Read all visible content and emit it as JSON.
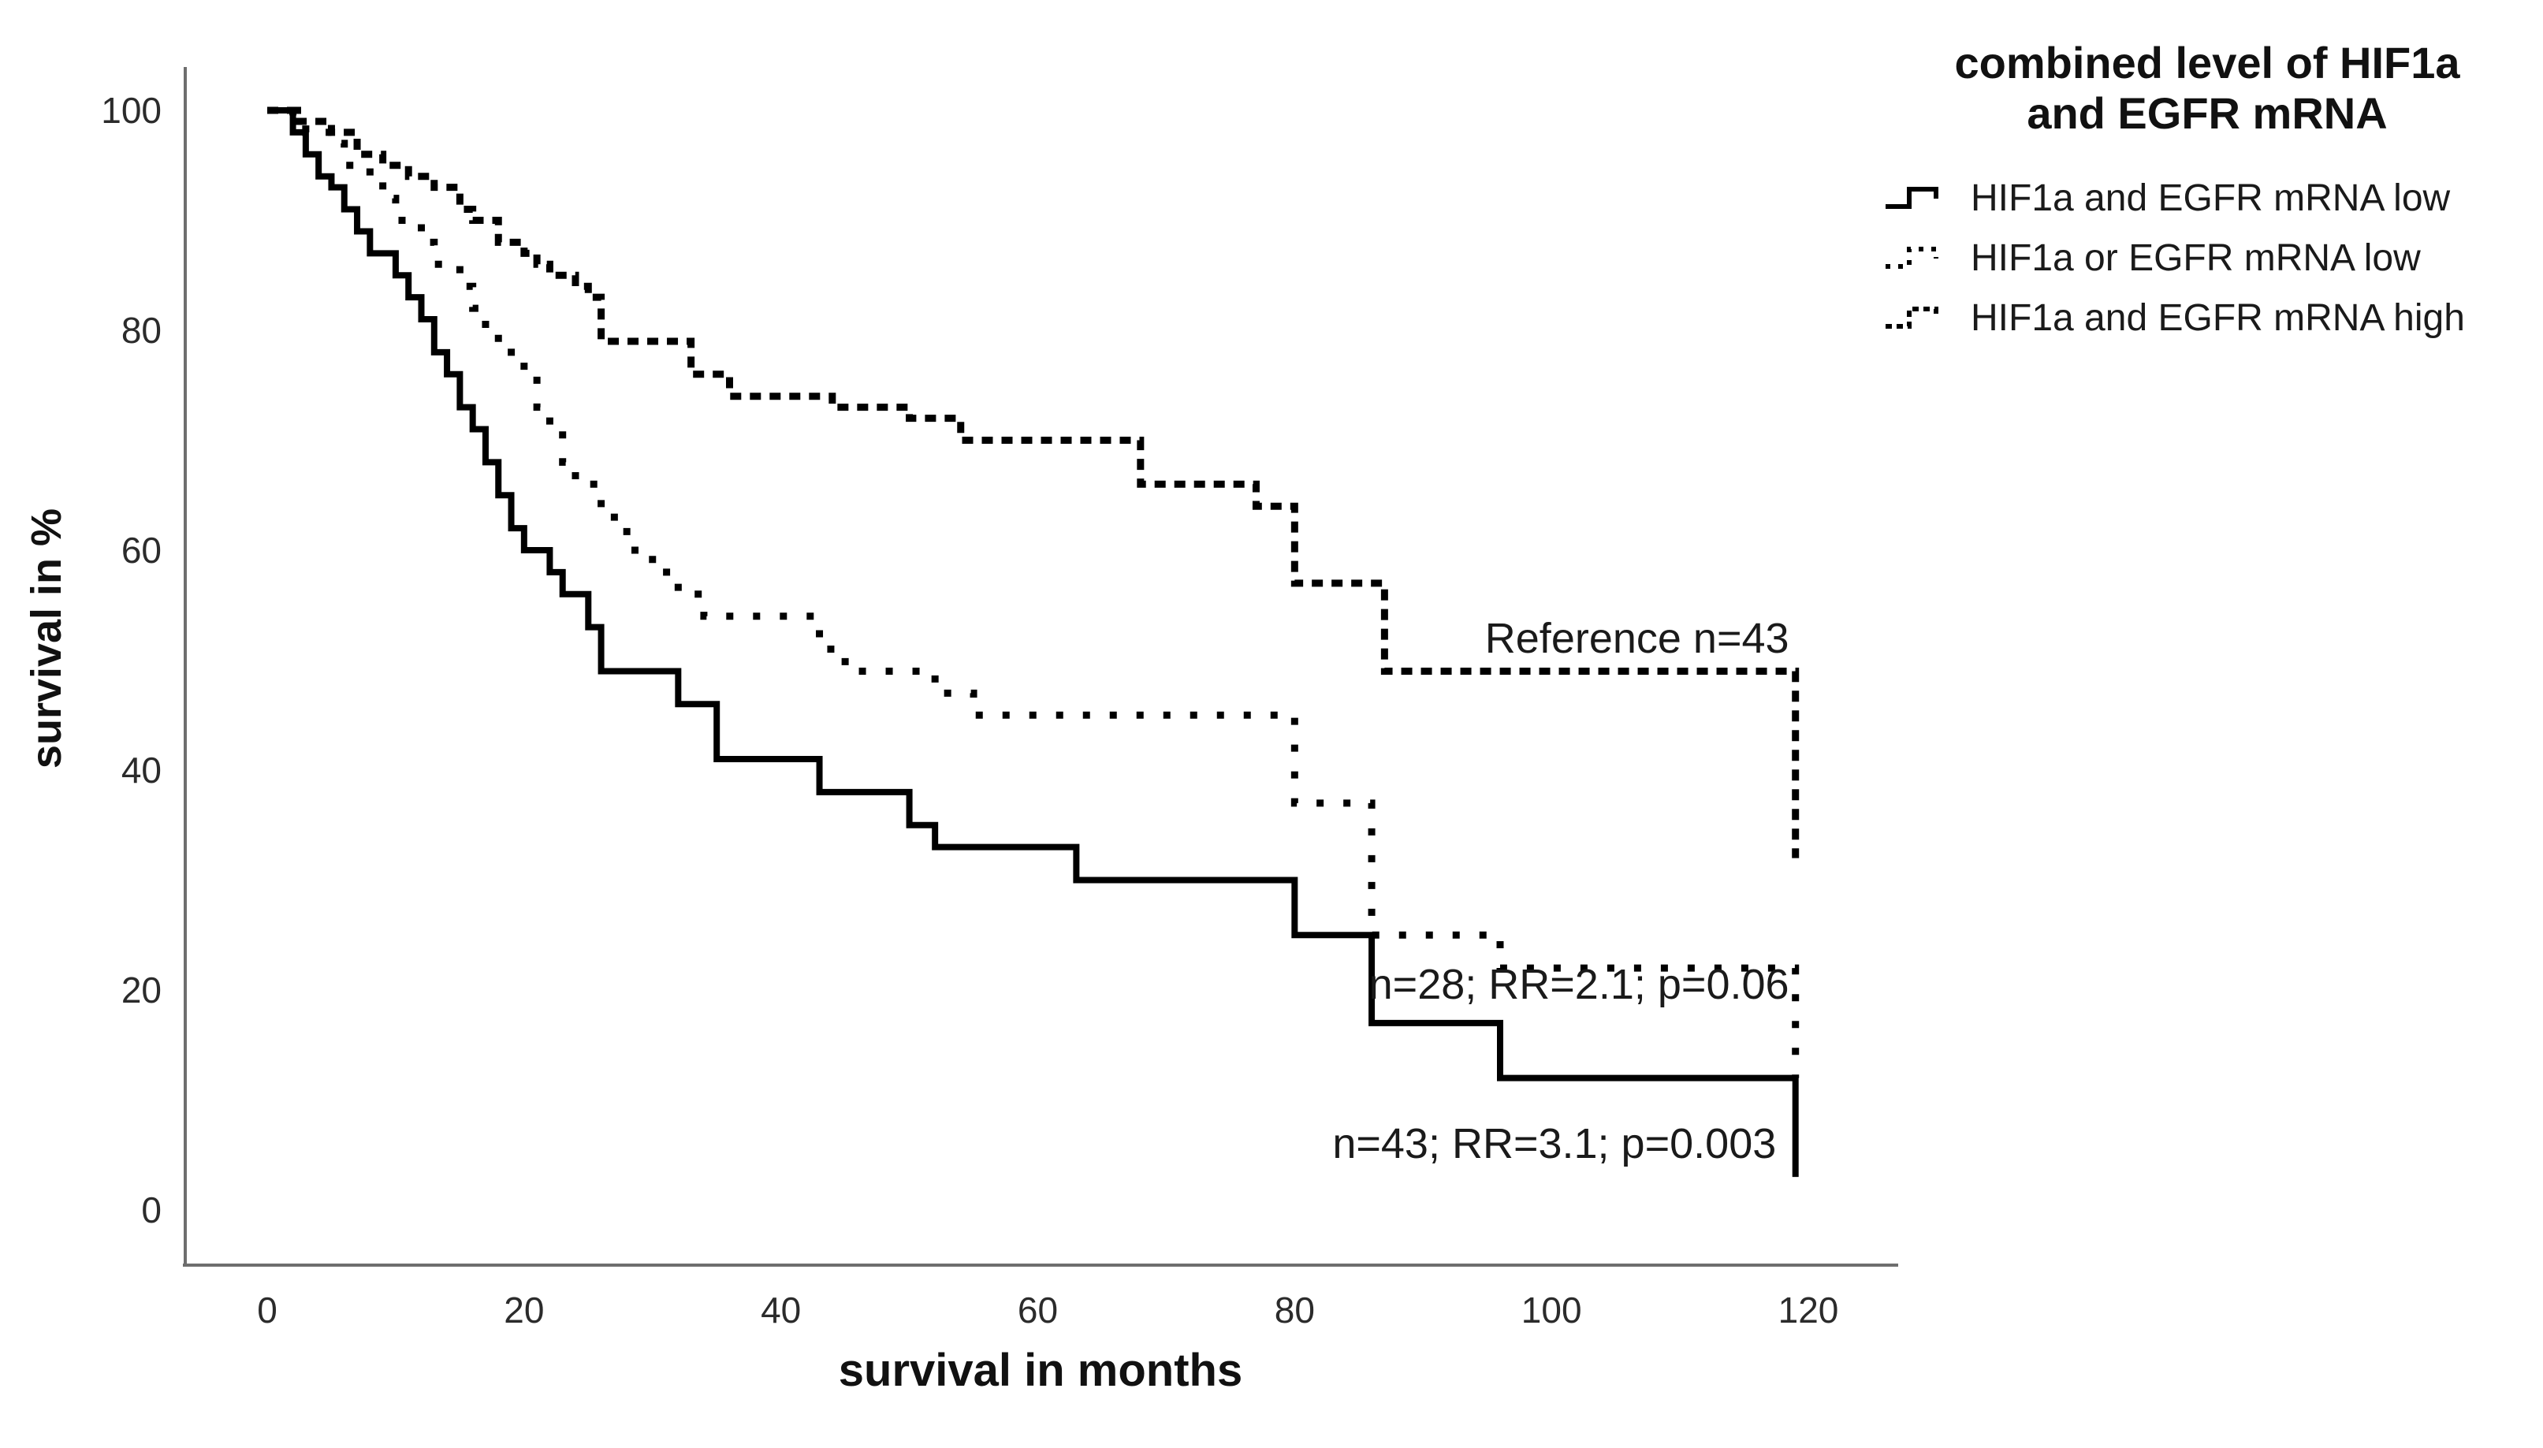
{
  "page": {
    "background": "#ffffff"
  },
  "chart_data": {
    "type": "line",
    "subtype": "kaplan-meier-step",
    "title": "",
    "xlabel": "survival in months",
    "ylabel": "survival in %",
    "x_ticks": [
      0,
      20,
      40,
      60,
      80,
      100,
      120
    ],
    "y_ticks": [
      0,
      20,
      40,
      60,
      80,
      100
    ],
    "xlim": [
      -6,
      127
    ],
    "ylim": [
      -5,
      104
    ],
    "grid": false,
    "legend_position": "top-right",
    "axis_color": "#6e6e6e",
    "line_color": "#000000",
    "legend_title": [
      "combined level of HIF1a",
      "and EGFR mRNA"
    ],
    "series": [
      {
        "name": "HIF1a and EGFR mRNA low",
        "style": "solid",
        "n": 43,
        "points": [
          [
            0,
            100
          ],
          [
            2,
            98
          ],
          [
            3,
            96
          ],
          [
            4,
            94
          ],
          [
            5,
            93
          ],
          [
            6,
            91
          ],
          [
            7,
            89
          ],
          [
            8,
            87
          ],
          [
            10,
            85
          ],
          [
            11,
            83
          ],
          [
            12,
            81
          ],
          [
            13,
            78
          ],
          [
            14,
            76
          ],
          [
            15,
            73
          ],
          [
            16,
            71
          ],
          [
            17,
            68
          ],
          [
            18,
            65
          ],
          [
            19,
            62
          ],
          [
            20,
            60
          ],
          [
            22,
            58
          ],
          [
            23,
            56
          ],
          [
            25,
            53
          ],
          [
            26,
            49
          ],
          [
            32,
            46
          ],
          [
            35,
            41
          ],
          [
            43,
            38
          ],
          [
            50,
            35
          ],
          [
            52,
            33
          ],
          [
            63,
            30
          ],
          [
            80,
            25
          ],
          [
            86,
            17
          ],
          [
            96,
            12
          ],
          [
            119,
            3
          ]
        ]
      },
      {
        "name": "HIF1a or EGFR mRNA low",
        "style": "dotted",
        "n": 28,
        "points": [
          [
            0,
            100
          ],
          [
            3,
            98
          ],
          [
            5,
            97
          ],
          [
            6,
            95
          ],
          [
            8,
            94
          ],
          [
            9,
            92
          ],
          [
            10,
            90
          ],
          [
            12,
            88
          ],
          [
            13,
            86
          ],
          [
            15,
            84
          ],
          [
            16,
            82
          ],
          [
            17,
            80
          ],
          [
            18,
            78
          ],
          [
            20,
            76
          ],
          [
            21,
            73
          ],
          [
            22,
            71
          ],
          [
            23,
            68
          ],
          [
            24,
            66
          ],
          [
            26,
            63
          ],
          [
            28,
            60
          ],
          [
            30,
            58
          ],
          [
            32,
            56
          ],
          [
            34,
            54
          ],
          [
            43,
            51
          ],
          [
            45,
            49
          ],
          [
            52,
            47
          ],
          [
            55,
            45
          ],
          [
            80,
            37
          ],
          [
            86,
            25
          ],
          [
            96,
            22
          ],
          [
            119,
            12
          ]
        ]
      },
      {
        "name": "HIF1a and EGFR mRNA high",
        "style": "dashed",
        "n": 43,
        "points": [
          [
            0,
            100
          ],
          [
            2,
            99
          ],
          [
            5,
            98
          ],
          [
            7,
            96
          ],
          [
            9,
            95
          ],
          [
            11,
            94
          ],
          [
            13,
            93
          ],
          [
            15,
            91
          ],
          [
            16,
            90
          ],
          [
            18,
            88
          ],
          [
            20,
            87
          ],
          [
            21,
            86
          ],
          [
            22,
            85
          ],
          [
            24,
            84
          ],
          [
            25,
            83
          ],
          [
            26,
            79
          ],
          [
            33,
            76
          ],
          [
            36,
            74
          ],
          [
            44,
            73
          ],
          [
            50,
            72
          ],
          [
            54,
            70
          ],
          [
            68,
            66
          ],
          [
            77,
            64
          ],
          [
            80,
            57
          ],
          [
            87,
            49
          ],
          [
            119,
            32
          ]
        ]
      }
    ],
    "annotations": [
      {
        "text": "Reference n=43",
        "x": 118.5,
        "y": 52.0,
        "align": "right"
      },
      {
        "text": "n=28; RR=2.1; p=0.06",
        "x": 118.5,
        "y": 20.5,
        "align": "right"
      },
      {
        "text": "n=43; RR=3.1; p=0.003",
        "x": 117.5,
        "y": 6.0,
        "align": "right"
      }
    ]
  }
}
